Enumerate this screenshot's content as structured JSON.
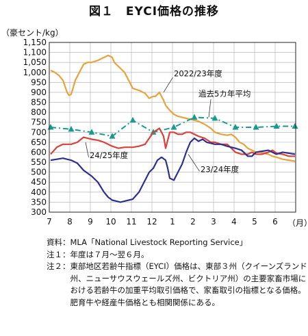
{
  "chart_data": {
    "type": "line",
    "title": "図１　EYCI価格の推移",
    "yunit": "（豪セント/kg）",
    "xunit": "（月）",
    "ylim": [
      300,
      1150
    ],
    "yticks": [
      300,
      350,
      400,
      450,
      500,
      550,
      600,
      650,
      700,
      750,
      800,
      850,
      900,
      950,
      1000,
      1050,
      1100,
      1150
    ],
    "ytick_labels": [
      "300",
      "350",
      "400",
      "450",
      "500",
      "550",
      "600",
      "650",
      "700",
      "750",
      "800",
      "850",
      "900",
      "950",
      "1,000",
      "1,050",
      "1,100",
      "1,150"
    ],
    "x_labels": [
      "7",
      "8",
      "9",
      "10",
      "11",
      "12",
      "1",
      "2",
      "3",
      "4",
      "5",
      "6"
    ],
    "grid": true,
    "series": [
      {
        "name": "2022/23年度",
        "color": "#e8a23a",
        "style": "solid",
        "x": [
          0,
          0.2,
          0.4,
          0.6,
          0.8,
          0.9,
          1.0,
          1.2,
          1.4,
          1.6,
          1.8,
          2.0,
          2.3,
          2.6,
          2.8,
          3.0,
          3.1,
          3.3,
          3.6,
          3.8,
          4.0,
          4.3,
          4.6,
          4.8,
          5.0,
          5.1,
          5.3,
          5.5,
          5.6,
          5.8,
          6.0,
          6.2,
          6.4,
          6.6,
          6.8,
          7.0,
          7.2,
          7.5,
          7.8,
          8.0,
          8.3,
          8.6,
          8.8,
          9.0,
          9.2,
          9.4,
          9.6,
          9.8,
          10.0,
          10.2,
          10.4,
          10.6,
          10.8,
          11.0,
          11.3,
          11.6,
          11.9
        ],
        "y": [
          1010,
          1000,
          985,
          960,
          900,
          885,
          890,
          960,
          1000,
          1040,
          1050,
          1050,
          1060,
          1075,
          1085,
          1075,
          1050,
          1030,
          1000,
          960,
          920,
          910,
          895,
          870,
          880,
          880,
          900,
          860,
          835,
          810,
          790,
          780,
          775,
          770,
          765,
          760,
          755,
          740,
          720,
          700,
          690,
          685,
          690,
          675,
          650,
          640,
          620,
          610,
          600,
          600,
          595,
          590,
          580,
          575,
          565,
          560,
          555
        ]
      },
      {
        "name": "過去5カ年平均",
        "color": "#1a9a8e",
        "style": "dashdot",
        "x": [
          0,
          1,
          2,
          3,
          4,
          5,
          6,
          7,
          8,
          9,
          10,
          11,
          11.9
        ],
        "y": [
          725,
          715,
          700,
          680,
          760,
          700,
          725,
          775,
          770,
          725,
          725,
          730,
          730
        ]
      },
      {
        "name": "24/25年度",
        "color": "#d9413a",
        "style": "solid",
        "x": [
          0,
          0.3,
          0.6,
          1.0,
          1.3,
          1.6,
          2.0,
          2.3,
          2.6,
          3.0,
          3.3,
          3.6,
          4.0,
          4.3,
          4.6,
          5.0,
          5.3,
          5.5,
          5.6,
          5.8,
          6.0,
          6.2,
          6.4,
          6.6,
          6.8,
          7.0,
          7.2,
          7.5,
          7.8,
          8.0,
          8.3,
          8.6,
          8.8,
          9.0,
          9.3,
          9.6,
          9.8,
          10.0,
          10.3,
          10.6,
          10.8,
          11.0,
          11.3,
          11.6,
          11.9
        ],
        "y": [
          590,
          625,
          640,
          640,
          650,
          675,
          665,
          660,
          650,
          630,
          620,
          625,
          625,
          630,
          640,
          700,
          720,
          680,
          620,
          700,
          700,
          690,
          690,
          700,
          700,
          690,
          680,
          670,
          650,
          650,
          640,
          640,
          620,
          600,
          590,
          590,
          600,
          590,
          590,
          600,
          610,
          595,
          590,
          580,
          580
        ]
      },
      {
        "name": "23/24年度",
        "color": "#2c2f8f",
        "style": "solid",
        "x": [
          0,
          0.3,
          0.6,
          1.0,
          1.3,
          1.6,
          2.0,
          2.3,
          2.6,
          2.8,
          3.0,
          3.2,
          3.4,
          3.6,
          3.8,
          4.0,
          4.3,
          4.6,
          4.8,
          5.0,
          5.2,
          5.4,
          5.6,
          5.7,
          5.8,
          6.0,
          6.2,
          6.4,
          6.6,
          6.8,
          7.0,
          7.2,
          7.4,
          7.6,
          7.8,
          8.0,
          8.3,
          8.6,
          9.0,
          9.3,
          9.6,
          9.8,
          10.0,
          10.3,
          10.6,
          10.8,
          11.0,
          11.3,
          11.6,
          11.9
        ],
        "y": [
          560,
          565,
          570,
          560,
          545,
          510,
          480,
          450,
          400,
          375,
          360,
          355,
          350,
          355,
          360,
          365,
          400,
          460,
          500,
          520,
          560,
          575,
          560,
          520,
          470,
          460,
          500,
          540,
          600,
          650,
          670,
          655,
          665,
          650,
          645,
          640,
          640,
          630,
          620,
          610,
          580,
          580,
          600,
          605,
          610,
          600,
          590,
          600,
          595,
          590
        ]
      }
    ],
    "annotations": [
      {
        "text": "2022/23年度",
        "x": 6.0,
        "y": 980
      },
      {
        "text": "過去5カ年平均",
        "x": 7.2,
        "y": 880
      },
      {
        "text": "24/25年度",
        "x": 1.9,
        "y": 570
      },
      {
        "text": "23/24年度",
        "x": 7.3,
        "y": 500
      }
    ]
  },
  "notes": [
    {
      "label": "資料：",
      "text": "MLA「National Livestock Reporting Service」"
    },
    {
      "label": "注１：",
      "text": "年度は７月～翌６月。"
    },
    {
      "label": "注２：",
      "text": "東部地区若齢牛指標（EYCI）価格は、東部３州（クイーンズランド州、ニューサウスウェールズ州、ビクトリア州）の主要家畜市場における若齢牛の加重平均取引価格で、家畜取引の指標となる価格。肥育牛や経産牛価格とも相関関係にある。"
    }
  ]
}
